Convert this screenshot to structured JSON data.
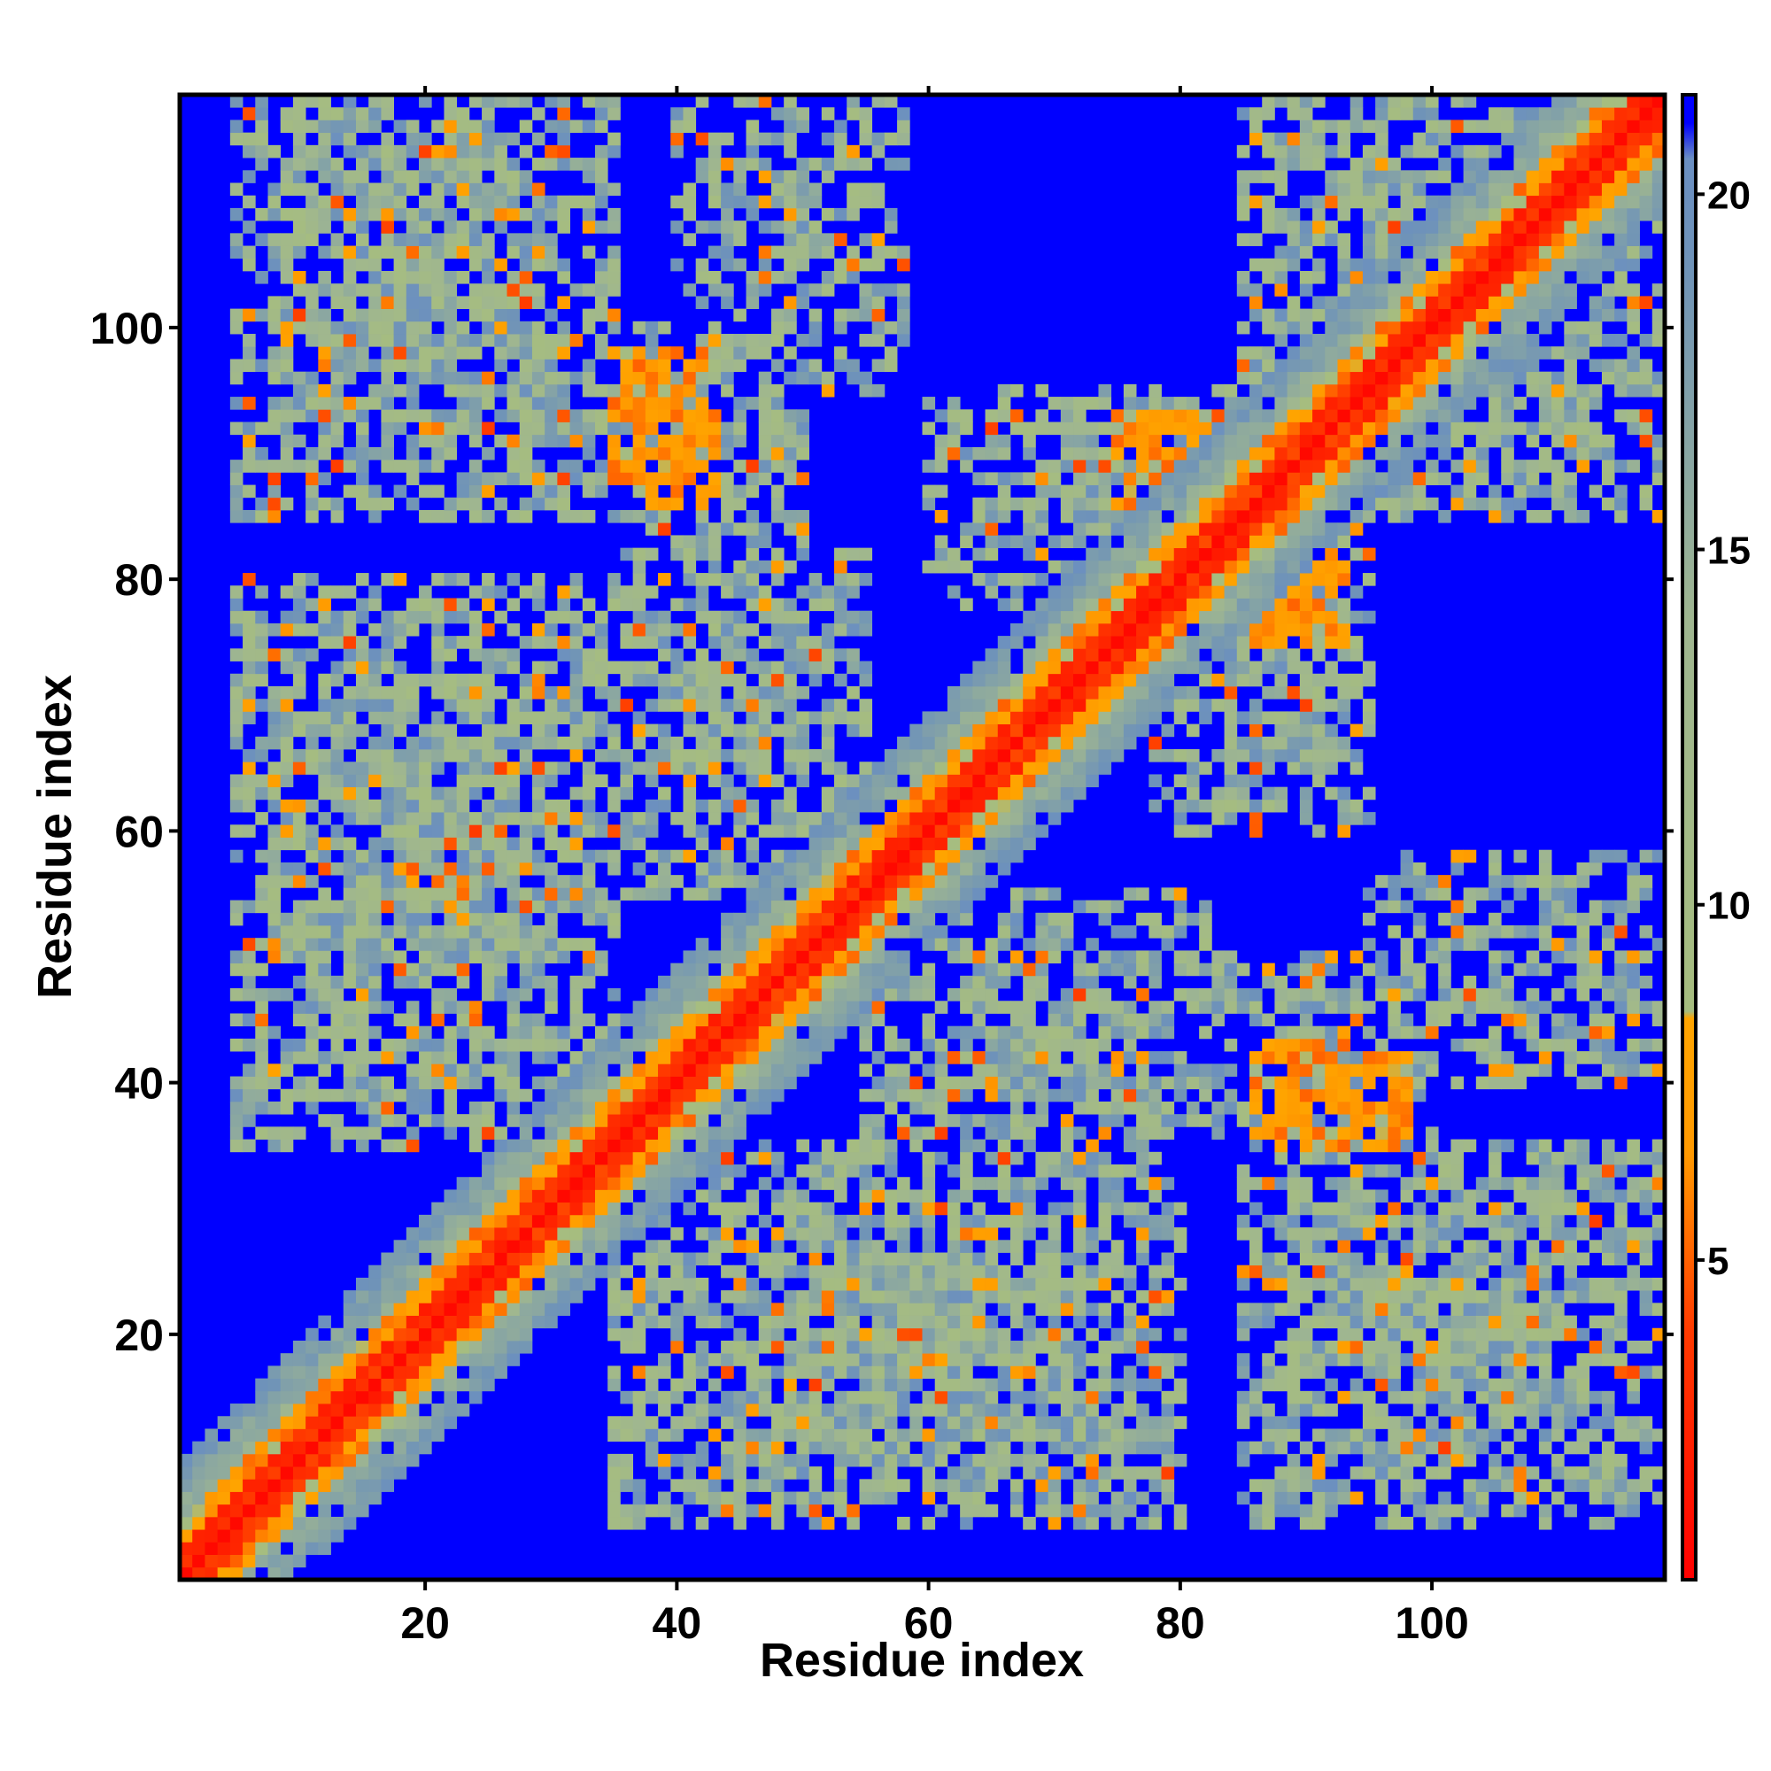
{
  "chart_data": {
    "type": "heatmap",
    "title": "",
    "xlabel": "Residue index",
    "ylabel": "Residue index",
    "n_residues": 118,
    "xlim": [
      1,
      118
    ],
    "ylim": [
      1,
      118
    ],
    "x_ticks": [
      20,
      40,
      60,
      80,
      100
    ],
    "y_ticks": [
      20,
      40,
      60,
      80,
      100
    ],
    "colorbar": {
      "range": [
        0.5,
        21.4
      ],
      "ticks": [
        5,
        10,
        15,
        20
      ],
      "position": "right",
      "stops": [
        {
          "value": 0.5,
          "color": "#ff0000"
        },
        {
          "value": 4.0,
          "color": "#ff3a00"
        },
        {
          "value": 6.5,
          "color": "#ff9900"
        },
        {
          "value": 8.4,
          "color": "#ffa500"
        },
        {
          "value": 8.5,
          "color": "#a6bd7f"
        },
        {
          "value": 14.0,
          "color": "#9fb690"
        },
        {
          "value": 19.0,
          "color": "#6f93b8"
        },
        {
          "value": 20.5,
          "color": "#6b8fc2"
        },
        {
          "value": 21.0,
          "color": "#0000ff"
        }
      ]
    },
    "max_value": 21,
    "contact_regions": [
      {
        "x": [
          5,
          35
        ],
        "y": [
          90,
          118
        ],
        "strength": 0.8
      },
      {
        "x": [
          40,
          58
        ],
        "y": [
          105,
          118
        ],
        "strength": 0.6
      },
      {
        "x": [
          36,
          50
        ],
        "y": [
          85,
          100
        ],
        "strength": 0.7
      },
      {
        "x": [
          5,
          35
        ],
        "y": [
          40,
          78
        ],
        "strength": 0.85
      },
      {
        "x": [
          38,
          55
        ],
        "y": [
          58,
          82
        ],
        "strength": 0.7
      },
      {
        "x": [
          62,
          90
        ],
        "y": [
          78,
          95
        ],
        "strength": 0.7
      },
      {
        "x": [
          85,
          118
        ],
        "y": [
          90,
          118
        ],
        "strength": 0.8
      },
      {
        "x": [
          35,
          80
        ],
        "y": [
          5,
          32
        ],
        "strength": 0.8
      },
      {
        "x": [
          55,
          85
        ],
        "y": [
          35,
          50
        ],
        "strength": 0.75
      },
      {
        "x": [
          85,
          118
        ],
        "y": [
          5,
          35
        ],
        "strength": 0.8
      },
      {
        "x": [
          95,
          118
        ],
        "y": [
          40,
          58
        ],
        "strength": 0.6
      },
      {
        "x": [
          80,
          95
        ],
        "y": [
          60,
          80
        ],
        "strength": 0.65
      }
    ],
    "strand_pairs": [
      {
        "x": [
          35,
          42
        ],
        "y": [
          88,
          98
        ]
      },
      {
        "x": [
          76,
          84
        ],
        "y": [
          85,
          92
        ]
      },
      {
        "x": [
          86,
          93
        ],
        "y": [
          75,
          82
        ]
      },
      {
        "x": [
          86,
          93
        ],
        "y": [
          36,
          43
        ]
      }
    ]
  }
}
